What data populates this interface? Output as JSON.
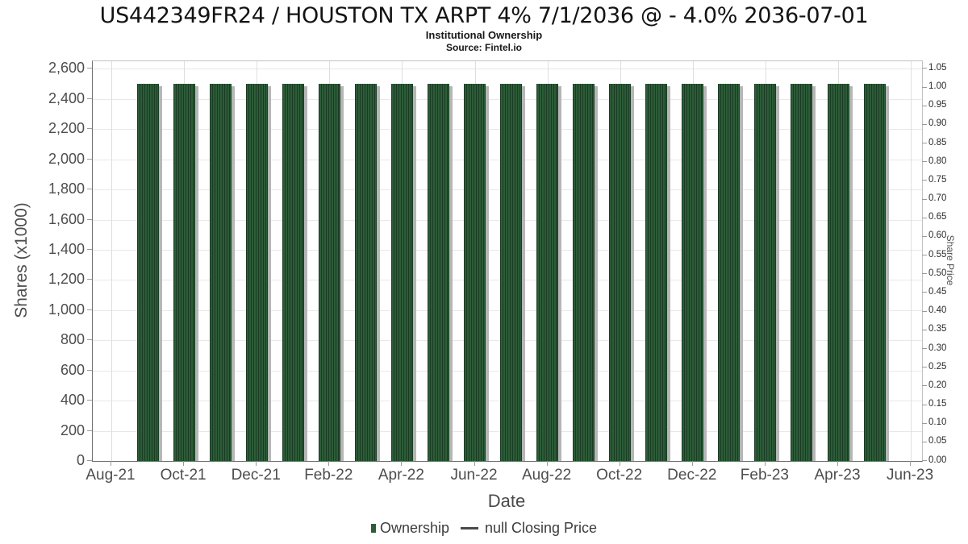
{
  "title": "US442349FR24 / HOUSTON TX ARPT 4% 7/1/2036 @ - 4.0% 2036-07-01",
  "subtitle": "Institutional Ownership",
  "source": "Source: Fintel.io",
  "chart_data": {
    "type": "bar",
    "title": "US442349FR24 / HOUSTON TX ARPT 4% 7/1/2036 @ - 4.0% 2036-07-01",
    "subtitle": "Institutional Ownership",
    "source": "Source: Fintel.io",
    "xlabel": "Date",
    "ylabel_left": "Shares (x1000)",
    "ylabel_right": "Share Price",
    "grid": true,
    "legend_position": "bottom",
    "categories": [
      "Sep-21",
      "Oct-21",
      "Nov-21",
      "Dec-21",
      "Jan-22",
      "Feb-22",
      "Mar-22",
      "Apr-22",
      "May-22",
      "Jun-22",
      "Jul-22",
      "Aug-22",
      "Sep-22",
      "Oct-22",
      "Nov-22",
      "Dec-22",
      "Jan-23",
      "Feb-23",
      "Mar-23",
      "Apr-23",
      "May-23"
    ],
    "series": [
      {
        "name": "Ownership",
        "type": "bar",
        "color": "#2d5c38",
        "values": [
          2500,
          2500,
          2500,
          2500,
          2500,
          2500,
          2500,
          2500,
          2500,
          2500,
          2500,
          2500,
          2500,
          2500,
          2500,
          2500,
          2500,
          2500,
          2500,
          2500,
          2500
        ]
      },
      {
        "name": "null Closing Price",
        "type": "line",
        "color": "#4a4a4a",
        "values": []
      }
    ],
    "x_tick_labels": [
      "Aug-21",
      "Oct-21",
      "Dec-21",
      "Feb-22",
      "Apr-22",
      "Jun-22",
      "Aug-22",
      "Oct-22",
      "Dec-22",
      "Feb-23",
      "Apr-23",
      "Jun-23"
    ],
    "y_axis_left": {
      "min": 0,
      "max": 2650,
      "tick_values": [
        0,
        200,
        400,
        600,
        800,
        1000,
        1200,
        1400,
        1600,
        1800,
        2000,
        2200,
        2400,
        2600
      ],
      "tick_labels": [
        "0",
        "200",
        "400",
        "600",
        "800",
        "1,000",
        "1,200",
        "1,400",
        "1,600",
        "1,800",
        "2,000",
        "2,200",
        "2,400",
        "2,600"
      ]
    },
    "y_axis_right": {
      "min": 0,
      "max": 1.0625,
      "tick_values": [
        0,
        0.05,
        0.1,
        0.15,
        0.2,
        0.25,
        0.3,
        0.35,
        0.4,
        0.45,
        0.5,
        0.55,
        0.6,
        0.65,
        0.7,
        0.75,
        0.8,
        0.85,
        0.9,
        0.95,
        1.0,
        1.05
      ],
      "tick_labels": [
        "0.00",
        "0.05",
        "0.10",
        "0.15",
        "0.20",
        "0.25",
        "0.30",
        "0.35",
        "0.40",
        "0.45",
        "0.50",
        "0.55",
        "0.60",
        "0.65",
        "0.70",
        "0.75",
        "0.80",
        "0.85",
        "0.90",
        "0.95",
        "1.00",
        "1.05"
      ]
    }
  },
  "legend": {
    "items": [
      {
        "label": "Ownership",
        "marker": "square",
        "color": "#2d5c38"
      },
      {
        "label": "null Closing Price",
        "marker": "line",
        "color": "#4a4a4a"
      }
    ]
  },
  "colors": {
    "bar_base": "#2d5c38",
    "bar_stripe": "#193c23",
    "bar_shadow": "#b6b6b6",
    "grid": "#e8e8e8",
    "axis_spine": "#6f6f6f",
    "tick_text": "#4d4d4d"
  }
}
